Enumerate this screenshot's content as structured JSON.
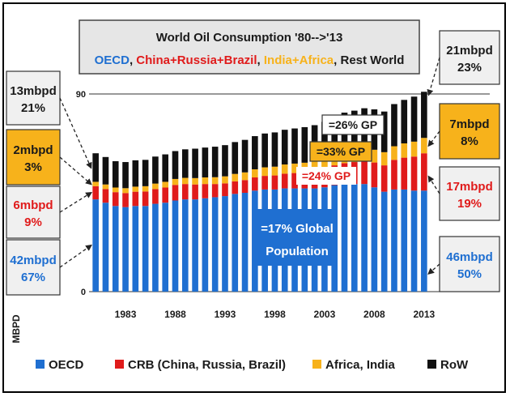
{
  "chart_data": {
    "type": "bar",
    "stacked": true,
    "title": "World Oil Consumption '80-->'13",
    "subtitle_parts": [
      {
        "text": "OECD",
        "color": "#1f6fd1"
      },
      {
        "text": ", ",
        "color": "#1a1a1a"
      },
      {
        "text": "China+Russia+Brazil",
        "color": "#e01b1b"
      },
      {
        "text": ", ",
        "color": "#1a1a1a"
      },
      {
        "text": "India+Africa",
        "color": "#f7b21b"
      },
      {
        "text": ", Rest World",
        "color": "#1a1a1a"
      }
    ],
    "ylabel": "MBPD",
    "xlabel": "",
    "ylim": [
      0,
      90
    ],
    "y_ticks": [
      0,
      90
    ],
    "x_tick_labels": [
      "1983",
      "1988",
      "1993",
      "1998",
      "2003",
      "2008",
      "2013"
    ],
    "categories": [
      "1980",
      "1981",
      "1982",
      "1983",
      "1984",
      "1985",
      "1986",
      "1987",
      "1988",
      "1989",
      "1990",
      "1991",
      "1992",
      "1993",
      "1994",
      "1995",
      "1996",
      "1997",
      "1998",
      "1999",
      "2000",
      "2001",
      "2002",
      "2003",
      "2004",
      "2005",
      "2006",
      "2007",
      "2008",
      "2009",
      "2010",
      "2011",
      "2012",
      "2013"
    ],
    "series": [
      {
        "name": "OECD",
        "color": "#1f6fd1",
        "values": [
          42.0,
          40.5,
          39.0,
          38.5,
          39.0,
          39.0,
          40.0,
          40.5,
          41.5,
          42.0,
          42.0,
          42.5,
          43.0,
          43.5,
          44.5,
          45.0,
          46.0,
          46.5,
          46.5,
          47.0,
          47.0,
          47.0,
          47.0,
          47.5,
          48.5,
          49.0,
          49.0,
          49.0,
          47.5,
          45.5,
          46.5,
          46.5,
          46.0,
          46.0
        ]
      },
      {
        "name": "CRB (China, Russia, Brazil)",
        "color": "#e01b1b",
        "values": [
          6.0,
          6.2,
          6.3,
          6.4,
          6.5,
          6.6,
          6.7,
          6.9,
          7.1,
          7.0,
          6.8,
          6.5,
          6.0,
          5.8,
          5.7,
          5.8,
          6.0,
          6.2,
          6.4,
          6.7,
          7.0,
          7.3,
          7.7,
          8.2,
          9.0,
          9.5,
          10.0,
          10.7,
          11.3,
          12.0,
          13.5,
          14.5,
          15.5,
          17.0
        ]
      },
      {
        "name": "Africa, India",
        "color": "#f7b21b",
        "values": [
          2.0,
          2.1,
          2.1,
          2.2,
          2.3,
          2.4,
          2.5,
          2.6,
          2.7,
          2.8,
          2.9,
          3.0,
          3.1,
          3.2,
          3.4,
          3.5,
          3.7,
          3.9,
          4.0,
          4.2,
          4.3,
          4.4,
          4.6,
          4.8,
          5.0,
          5.2,
          5.4,
          5.6,
          5.8,
          6.0,
          6.2,
          6.5,
          6.8,
          7.0
        ]
      },
      {
        "name": "RoW",
        "color": "#111111",
        "values": [
          13.0,
          12.5,
          12.0,
          11.9,
          12.0,
          12.0,
          12.3,
          12.5,
          12.7,
          13.0,
          13.4,
          13.6,
          13.9,
          14.2,
          14.5,
          14.8,
          15.1,
          15.4,
          15.6,
          15.8,
          16.0,
          16.2,
          16.5,
          16.8,
          17.4,
          17.8,
          18.0,
          18.2,
          18.4,
          18.5,
          19.2,
          19.8,
          20.5,
          21.0
        ]
      }
    ],
    "legend_position": "bottom",
    "callouts": {
      "left": [
        {
          "line1": "13mbpd",
          "line2": "21%",
          "highlight": false
        },
        {
          "line1": "2mbpd",
          "line2": "3%",
          "highlight": true
        },
        {
          "line1": "6mbpd",
          "line2": "9%",
          "highlight": false
        },
        {
          "line1": "42mbpd",
          "line2": "67%",
          "highlight": false
        }
      ],
      "right": [
        {
          "line1": "21mbpd",
          "line2": "23%",
          "highlight": false
        },
        {
          "line1": "7mbpd",
          "line2": "8%",
          "highlight": true
        },
        {
          "line1": "17mbpd",
          "line2": "19%",
          "highlight": false
        },
        {
          "line1": "46mbpd",
          "line2": "50%",
          "highlight": false
        }
      ],
      "gp": [
        {
          "text": "=26% GP",
          "kind": "row"
        },
        {
          "text": "=33% GP",
          "kind": "africa"
        },
        {
          "text": "=24% GP",
          "kind": "crb"
        }
      ],
      "population": {
        "line1": "=17% Global",
        "line2": "Population"
      }
    }
  }
}
